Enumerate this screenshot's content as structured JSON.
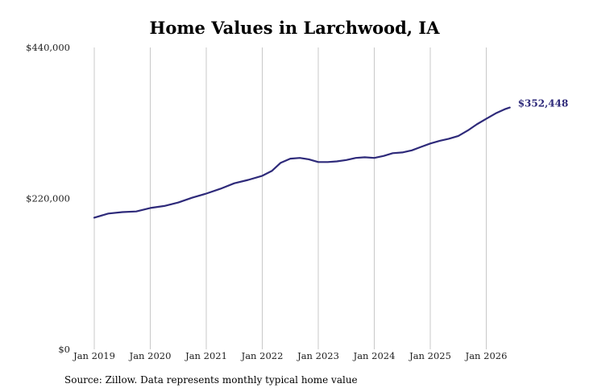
{
  "chart_data": {
    "type": "line",
    "title": "Home Values in Larchwood, IA",
    "xlabel": "",
    "ylabel": "",
    "ylim": [
      0,
      440000
    ],
    "y_ticks": [
      {
        "value": 0,
        "label": "$0"
      },
      {
        "value": 220000,
        "label": "$220,000"
      },
      {
        "value": 440000,
        "label": "$440,000"
      }
    ],
    "x_ticks": [
      {
        "value": 2019.0,
        "label": "Jan 2019"
      },
      {
        "value": 2020.0,
        "label": "Jan 2020"
      },
      {
        "value": 2021.0,
        "label": "Jan 2021"
      },
      {
        "value": 2022.0,
        "label": "Jan 2022"
      },
      {
        "value": 2023.0,
        "label": "Jan 2023"
      },
      {
        "value": 2024.0,
        "label": "Jan 2024"
      },
      {
        "value": 2025.0,
        "label": "Jan 2025"
      },
      {
        "value": 2026.0,
        "label": "Jan 2026"
      }
    ],
    "xlim": [
      2019.0,
      2026.45
    ],
    "grid": "vertical",
    "line_color": "#2e2a7a",
    "end_label": "$352,448",
    "series": [
      {
        "x": [
          2019.0,
          2019.25,
          2019.5,
          2019.75,
          2020.0,
          2020.25,
          2020.5,
          2020.75,
          2021.0,
          2021.25,
          2021.5,
          2021.75,
          2022.0,
          2022.17,
          2022.33,
          2022.5,
          2022.67,
          2022.83,
          2023.0,
          2023.17,
          2023.33,
          2023.5,
          2023.67,
          2023.83,
          2024.0,
          2024.17,
          2024.33,
          2024.5,
          2024.67,
          2024.83,
          2025.0,
          2025.17,
          2025.33,
          2025.5,
          2025.67,
          2025.83,
          2026.0,
          2026.17,
          2026.33,
          2026.42
        ],
        "y": [
          192000,
          198000,
          200000,
          201000,
          206000,
          209000,
          214000,
          221000,
          227000,
          234000,
          242000,
          247000,
          253000,
          260000,
          272000,
          278000,
          279000,
          277000,
          273000,
          273000,
          274000,
          276000,
          279000,
          280000,
          279000,
          282000,
          286000,
          287000,
          290000,
          295000,
          300000,
          304000,
          307000,
          311000,
          319000,
          328000,
          336000,
          344000,
          350000,
          352448
        ]
      }
    ]
  },
  "footer": {
    "source": "Source: Zillow. Data represents monthly typical home value"
  }
}
